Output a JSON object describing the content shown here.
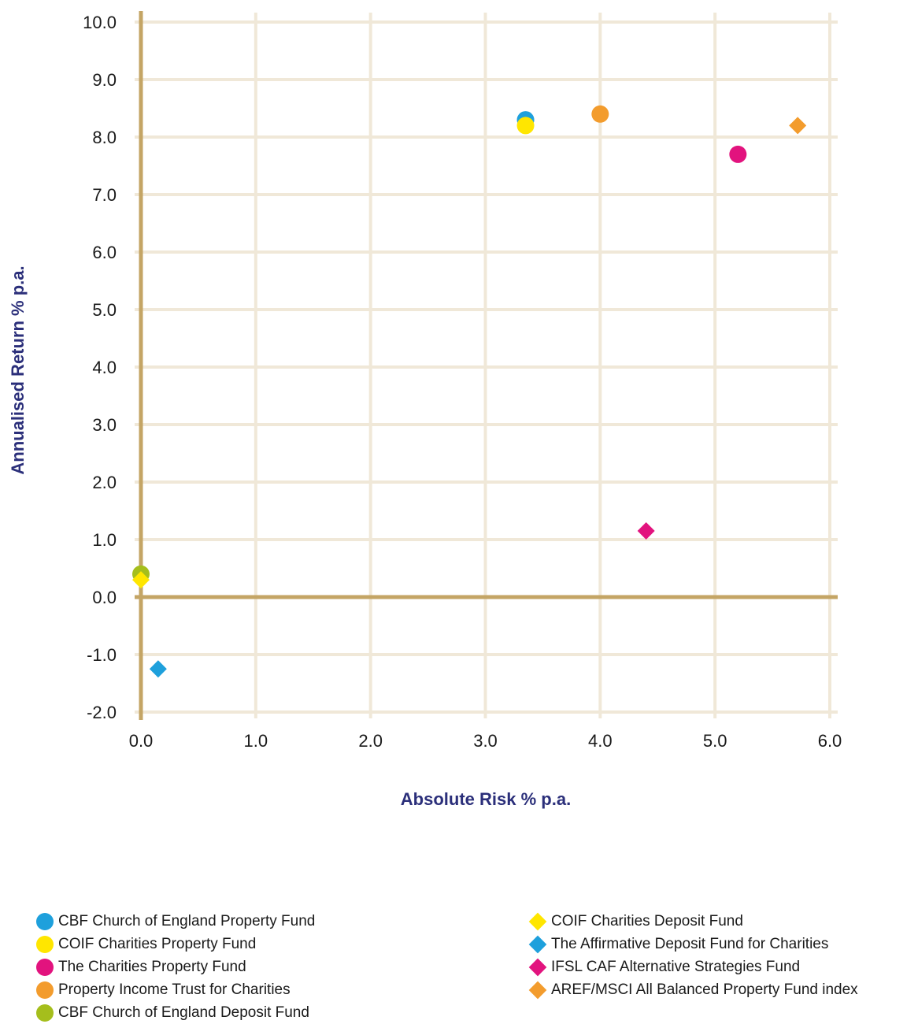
{
  "chart_data": {
    "type": "scatter",
    "xlabel": "Absolute Risk % p.a.",
    "ylabel": "Annualised Return % p.a.",
    "xlim": [
      0.0,
      6.0
    ],
    "ylim": [
      -2.0,
      10.0
    ],
    "x_ticks": [
      "0.0",
      "1.0",
      "2.0",
      "3.0",
      "4.0",
      "5.0",
      "6.0"
    ],
    "y_ticks": [
      "10.0",
      "9.0",
      "8.0",
      "7.0",
      "6.0",
      "5.0",
      "4.0",
      "3.0",
      "2.0",
      "1.0",
      "0.0",
      "-1.0",
      "-2.0"
    ],
    "grid": true,
    "legend_position": "bottom",
    "series": [
      {
        "name": "CBF Church of England Property Fund",
        "marker": "circle",
        "color": "#1ea0dc",
        "x": 3.35,
        "y": 8.3
      },
      {
        "name": "COIF Charities Property Fund",
        "marker": "circle",
        "color": "#ffe600",
        "x": 3.35,
        "y": 8.2
      },
      {
        "name": "The Charities Property Fund",
        "marker": "circle",
        "color": "#e2137e",
        "x": 5.2,
        "y": 7.7
      },
      {
        "name": "Property Income Trust for Charities",
        "marker": "circle",
        "color": "#f39c2d",
        "x": 4.0,
        "y": 8.4
      },
      {
        "name": "CBF Church of England Deposit Fund",
        "marker": "circle",
        "color": "#a5be1c",
        "x": 0.0,
        "y": 0.4
      },
      {
        "name": "COIF Charities Deposit Fund",
        "marker": "diamond",
        "color": "#ffe600",
        "x": 0.0,
        "y": 0.3
      },
      {
        "name": "The Affirmative Deposit Fund for Charities",
        "marker": "diamond",
        "color": "#1ea0dc",
        "x": 0.15,
        "y": -1.25
      },
      {
        "name": "IFSL CAF Alternative Strategies Fund",
        "marker": "diamond",
        "color": "#e2137e",
        "x": 4.4,
        "y": 1.15
      },
      {
        "name": "AREF/MSCI All Balanced Property Fund index",
        "marker": "diamond",
        "color": "#f39c2d",
        "x": 5.72,
        "y": 8.2
      }
    ]
  },
  "colors": {
    "grid": "#f0e8d8",
    "axis": "#c4a565",
    "axis_title": "#2b2f7a"
  }
}
